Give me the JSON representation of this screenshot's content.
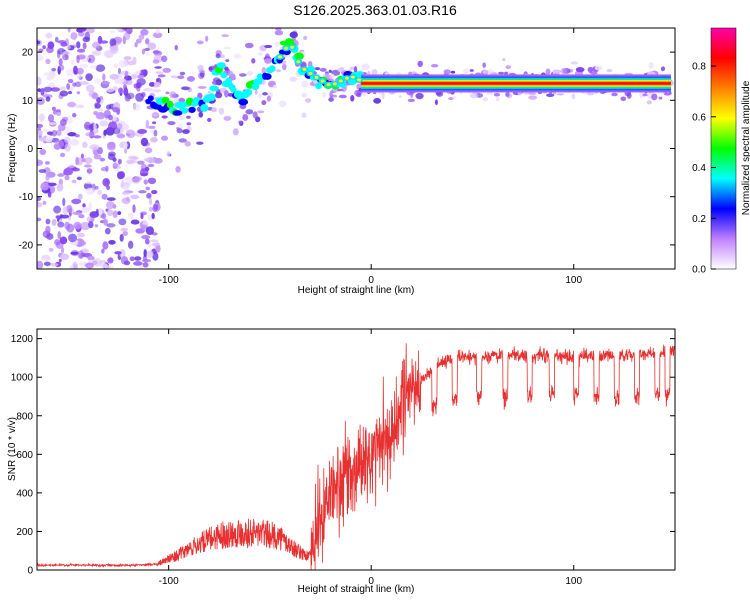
{
  "chart_data": [
    {
      "type": "heatmap",
      "title": "S126.2025.363.01.03.R16",
      "xlabel": "Height of straight line (km)",
      "ylabel": "Frequency (Hz)",
      "xlim": [
        -165,
        150
      ],
      "ylim": [
        -25,
        25
      ],
      "xticks": [
        -100,
        0,
        100
      ],
      "xtick_labels": [
        "-100",
        "0",
        "100"
      ],
      "yticks": [
        20,
        10,
        0,
        -10,
        -20
      ],
      "ytick_labels": [
        "20",
        "10",
        "0",
        "-10",
        "-20"
      ],
      "ridge": {
        "x": [
          -110,
          -100,
          -90,
          -80,
          -75,
          -65,
          -55,
          -45,
          -40,
          -35,
          -28,
          -20,
          -15,
          -10,
          -5,
          0,
          10,
          20,
          40,
          60,
          80,
          100,
          120,
          140,
          148
        ],
        "y": [
          9,
          9,
          9,
          10,
          17,
          10,
          14,
          19,
          22,
          17,
          15,
          13,
          14,
          15,
          14,
          13.5,
          13.5,
          13.5,
          13.5,
          13.5,
          13.5,
          13.5,
          13.5,
          13.5,
          13.5
        ]
      },
      "colorbar": {
        "label": "Normalized spectral amplitude",
        "range": [
          0,
          0.95
        ],
        "ticks": [
          0.0,
          0.2,
          0.4,
          0.6,
          0.8
        ],
        "tick_labels": [
          "0.0",
          "0.2",
          "0.4",
          "0.6",
          "0.8"
        ],
        "colors": [
          "#ffffff",
          "#c080ff",
          "#0000ff",
          "#00ffff",
          "#00ff00",
          "#ffff00",
          "#ff8000",
          "#ff0000",
          "#ff00aa"
        ]
      }
    },
    {
      "type": "line",
      "xlabel": "Height of straight line (km)",
      "ylabel": "SNR (10 * v/v)",
      "xlim": [
        -165,
        150
      ],
      "ylim": [
        0,
        1250
      ],
      "xticks": [
        -100,
        0,
        100
      ],
      "xtick_labels": [
        "-100",
        "0",
        "100"
      ],
      "yticks": [
        0,
        200,
        400,
        600,
        800,
        1000,
        1200
      ],
      "ytick_labels": [
        "0",
        "200",
        "400",
        "600",
        "800",
        "1000",
        "1200"
      ],
      "line_color": "#e83030",
      "trend": {
        "x": [
          -165,
          -120,
          -105,
          -95,
          -85,
          -75,
          -65,
          -55,
          -45,
          -40,
          -35,
          -30,
          -25,
          -20,
          -15,
          -10,
          -5,
          0,
          5,
          10,
          15,
          20,
          25,
          30,
          40,
          60,
          80,
          100,
          120,
          140,
          150
        ],
        "y": [
          25,
          25,
          30,
          70,
          120,
          160,
          170,
          170,
          150,
          110,
          80,
          60,
          250,
          400,
          450,
          500,
          550,
          580,
          650,
          700,
          850,
          920,
          980,
          1050,
          1100,
          1110,
          1110,
          1110,
          1110,
          1120,
          1130
        ]
      },
      "dips_x": [
        30,
        40,
        52,
        65,
        77,
        88,
        100,
        110,
        120,
        130,
        140,
        145
      ]
    }
  ]
}
